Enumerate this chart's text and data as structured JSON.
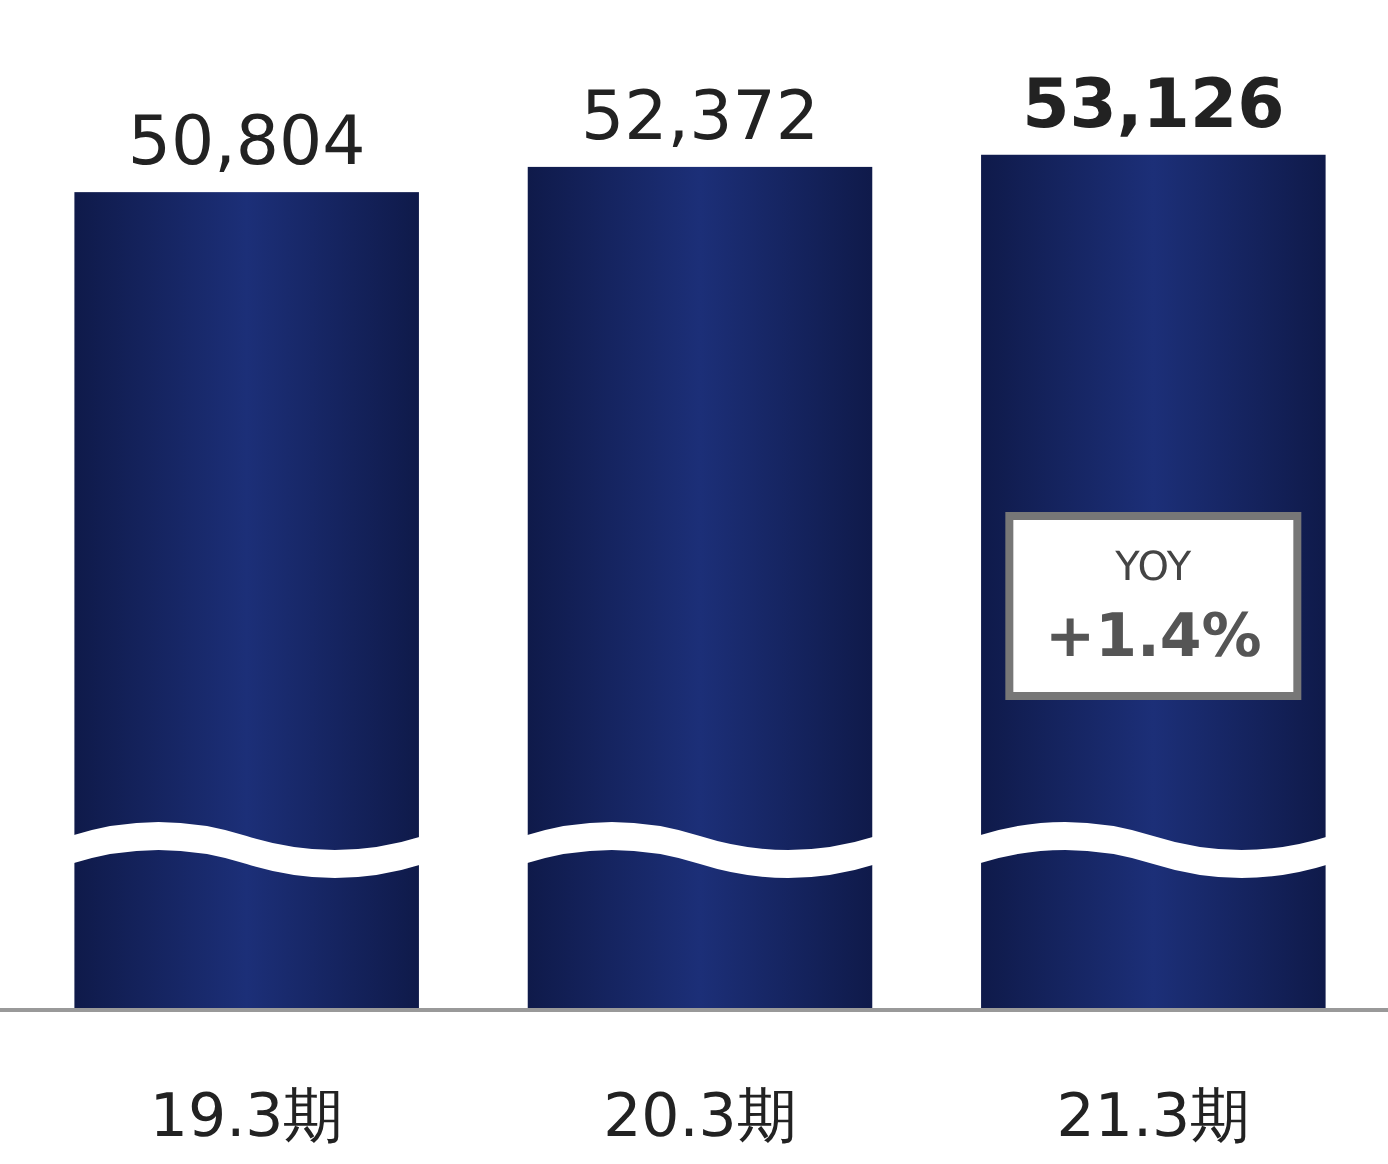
{
  "chart_data": {
    "type": "bar",
    "categories": [
      "19.3期",
      "20.3期",
      "21.3期"
    ],
    "values": [
      50804,
      52372,
      53126
    ],
    "color": "#1c2f78",
    "value_labels": [
      "50,804",
      "52,372",
      "53,126"
    ],
    "annotations": [
      "YOY",
      "+1.4%"
    ]
  }
}
